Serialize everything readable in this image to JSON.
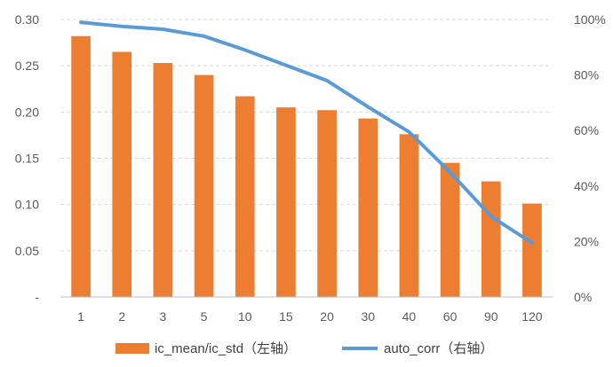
{
  "chart_data": {
    "type": "bar",
    "categories": [
      "1",
      "2",
      "3",
      "5",
      "10",
      "15",
      "20",
      "30",
      "40",
      "60",
      "90",
      "120"
    ],
    "series": [
      {
        "name": "ic_mean/ic_std（左轴）",
        "type": "bar",
        "axis": "left",
        "color": "#ED7D31",
        "values": [
          0.282,
          0.265,
          0.253,
          0.24,
          0.217,
          0.205,
          0.202,
          0.193,
          0.176,
          0.145,
          0.125,
          0.101
        ]
      },
      {
        "name": "auto_corr（右轴）",
        "type": "line",
        "axis": "right",
        "color": "#5B9BD5",
        "values": [
          99,
          97.5,
          96.5,
          94,
          89,
          83.5,
          78,
          68.5,
          59.5,
          45,
          29,
          19.5
        ]
      }
    ],
    "y_left": {
      "ylim": [
        0,
        0.3
      ],
      "ticks": [
        0,
        0.05,
        0.1,
        0.15,
        0.2,
        0.25,
        0.3
      ],
      "tick_labels": [
        "-",
        "0.05",
        "0.10",
        "0.15",
        "0.20",
        "0.25",
        "0.30"
      ]
    },
    "y_right": {
      "ylim": [
        0,
        100
      ],
      "ticks": [
        0,
        20,
        40,
        60,
        80,
        100
      ],
      "tick_labels": [
        "0%",
        "20%",
        "40%",
        "60%",
        "80%",
        "100%"
      ]
    },
    "grid": true,
    "legend": "bottom",
    "title": "",
    "xlabel": "",
    "ylabel": ""
  }
}
